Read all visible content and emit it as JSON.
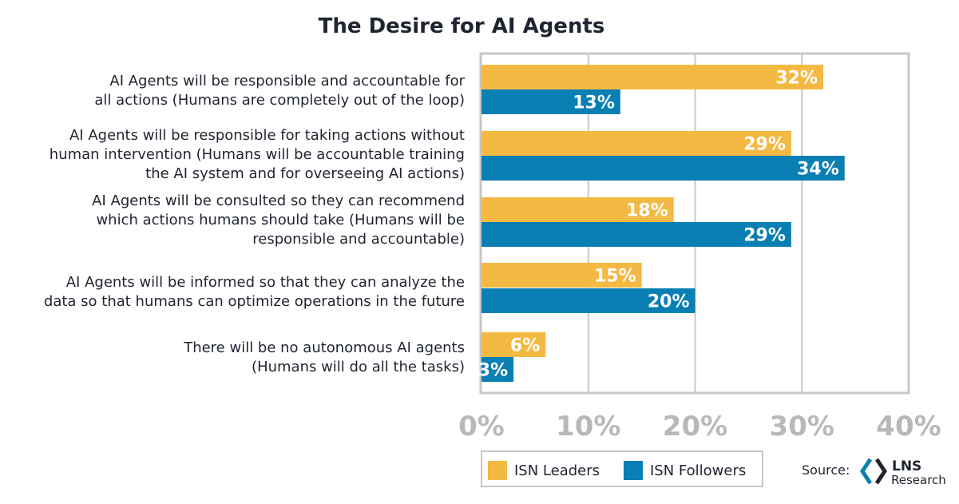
{
  "chart_data": {
    "type": "bar",
    "orientation": "horizontal",
    "title": "The Desire for AI Agents",
    "categories": [
      [
        "AI Agents will be responsible and accountable for",
        "all actions (Humans are completely out of the loop)"
      ],
      [
        "AI Agents will be responsible for taking actions without",
        "human intervention (Humans will be accountable training",
        "the AI system and for overseeing AI actions)"
      ],
      [
        "AI Agents will be consulted so they can recommend",
        "which actions humans should take (Humans will be",
        "responsible and accountable)"
      ],
      [
        "AI Agents will be informed so that they can analyze the",
        "data so that humans can optimize operations in the future"
      ],
      [
        "There will be no autonomous AI agents",
        "(Humans will do all the tasks)"
      ]
    ],
    "series": [
      {
        "name": "ISN Leaders",
        "color": "#f4b942",
        "values": [
          32,
          29,
          18,
          15,
          6
        ],
        "labels": [
          "32%",
          "29%",
          "18%",
          "15%",
          "6%"
        ]
      },
      {
        "name": "ISN Followers",
        "color": "#0a7fb3",
        "values": [
          13,
          34,
          29,
          20,
          3
        ],
        "labels": [
          "13%",
          "34%",
          "29%",
          "20%",
          "3%"
        ]
      }
    ],
    "xlim": [
      0,
      40
    ],
    "xticks": [
      0,
      10,
      20,
      30,
      40
    ],
    "xtick_labels": [
      "0%",
      "10%",
      "20%",
      "30%",
      "40%"
    ],
    "grid": true,
    "legend_position": "bottom"
  },
  "source": {
    "label": "Source:",
    "logo_main": "LNS",
    "logo_sub": "Research"
  }
}
